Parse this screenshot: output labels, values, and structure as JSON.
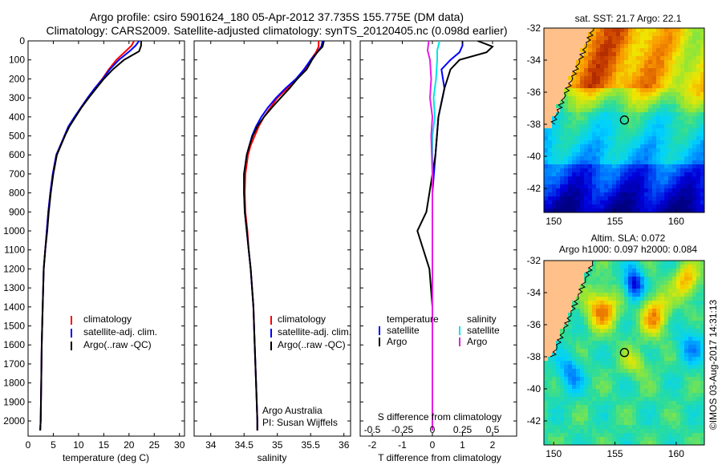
{
  "header": {
    "line1": "Argo profile: csiro 5901624_180 05-Apr-2012 37.735S 155.775E (DM data)",
    "line2": "Climatology: CARS2009. Satellite-adjusted climatology: synTS_20120405.nc (0.098d earlier)"
  },
  "colors": {
    "climatology": "#ff0000",
    "satellite": "#0000ff",
    "argo": "#000000",
    "satellite_s": "#00e5e5",
    "argo_s": "#e51ee5",
    "land": "#ffc08a"
  },
  "chart_data": [
    {
      "type": "line",
      "name": "temperature",
      "xlabel": "temperature (deg C)",
      "ylabel": "",
      "xlim": [
        0,
        31
      ],
      "ylim": [
        2080,
        0
      ],
      "xticks": [
        0,
        5,
        10,
        15,
        20,
        25,
        30
      ],
      "yticks": [
        0,
        100,
        200,
        300,
        400,
        500,
        600,
        700,
        800,
        900,
        1000,
        1100,
        1200,
        1300,
        1400,
        1500,
        1600,
        1700,
        1800,
        1900,
        2000
      ],
      "legend": [
        "climatology",
        "satellite-adj. clim.",
        "Argo(..raw -QC)"
      ],
      "series": [
        {
          "name": "climatology",
          "color": "#ff0000",
          "x": [
            21.0,
            20.5,
            19.5,
            17.5,
            16.0,
            14.7,
            13.2,
            11.8,
            10.5,
            9.3,
            8.0,
            7.2,
            6.4,
            5.6,
            4.9,
            4.4,
            4.0,
            3.7,
            3.4,
            3.1,
            2.9,
            2.7,
            2.6,
            2.5,
            2.4
          ],
          "y": [
            0,
            25,
            50,
            100,
            150,
            200,
            250,
            300,
            350,
            400,
            450,
            500,
            550,
            600,
            700,
            800,
            900,
            1000,
            1100,
            1200,
            1400,
            1600,
            1800,
            2000,
            2050
          ]
        },
        {
          "name": "satellite-adj. clim.",
          "color": "#0000ff",
          "x": [
            22.0,
            21.3,
            20.3,
            18.0,
            16.2,
            14.8,
            13.2,
            11.8,
            10.5,
            9.2,
            8.0,
            7.2,
            6.4,
            5.6,
            4.9,
            4.4,
            4.0,
            3.7,
            3.4,
            3.1,
            2.9,
            2.7,
            2.6,
            2.5,
            2.4
          ],
          "y": [
            0,
            25,
            50,
            100,
            150,
            200,
            250,
            300,
            350,
            400,
            450,
            500,
            550,
            600,
            700,
            800,
            900,
            1000,
            1100,
            1200,
            1400,
            1600,
            1800,
            2000,
            2050
          ]
        },
        {
          "name": "Argo(..raw -QC)",
          "color": "#000000",
          "x": [
            22.4,
            22.4,
            22.0,
            19.0,
            16.8,
            15.0,
            13.5,
            12.0,
            10.6,
            9.4,
            8.2,
            7.3,
            6.5,
            5.7,
            5.0,
            4.5,
            4.1,
            3.8,
            3.4,
            3.1,
            2.9,
            2.7,
            2.6,
            2.5,
            2.4
          ],
          "y": [
            0,
            25,
            55,
            100,
            150,
            200,
            250,
            300,
            350,
            400,
            450,
            500,
            550,
            600,
            700,
            800,
            900,
            1000,
            1100,
            1200,
            1400,
            1600,
            1800,
            2000,
            2050
          ]
        }
      ]
    },
    {
      "type": "line",
      "name": "salinity",
      "xlabel": "salinity",
      "ylabel": "",
      "xlim": [
        33.75,
        36.1
      ],
      "ylim": [
        2080,
        0
      ],
      "xticks": [
        34,
        34.5,
        35,
        35.5,
        36
      ],
      "yticks": [
        0,
        100,
        200,
        300,
        400,
        500,
        600,
        700,
        800,
        900,
        1000,
        1100,
        1200,
        1300,
        1400,
        1500,
        1600,
        1700,
        1800,
        1900,
        2000
      ],
      "legend": [
        "climatology",
        "satellite-adj. clim.",
        "Argo(..raw -QC)"
      ],
      "annotation": [
        "Argo Australia",
        "PI: Susan Wijffels"
      ],
      "series": [
        {
          "name": "climatology",
          "color": "#ff0000",
          "x": [
            35.62,
            35.62,
            35.58,
            35.5,
            35.42,
            35.3,
            35.15,
            35.0,
            34.9,
            34.8,
            34.72,
            34.66,
            34.6,
            34.56,
            34.52,
            34.51,
            34.52,
            34.55,
            34.57,
            34.6,
            34.64,
            34.66,
            34.68,
            34.7,
            34.7
          ],
          "y": [
            0,
            30,
            60,
            100,
            150,
            200,
            250,
            300,
            350,
            400,
            450,
            500,
            550,
            600,
            700,
            800,
            900,
            1000,
            1100,
            1200,
            1400,
            1600,
            1800,
            2000,
            2050
          ]
        },
        {
          "name": "satellite-adj. clim.",
          "color": "#0000ff",
          "x": [
            35.68,
            35.66,
            35.6,
            35.5,
            35.4,
            35.28,
            35.12,
            34.98,
            34.86,
            34.76,
            34.68,
            34.62,
            34.58,
            34.54,
            34.5,
            34.5,
            34.51,
            34.54,
            34.57,
            34.6,
            34.64,
            34.66,
            34.68,
            34.7,
            34.7
          ],
          "y": [
            0,
            30,
            60,
            100,
            150,
            200,
            250,
            300,
            350,
            400,
            450,
            500,
            550,
            600,
            700,
            800,
            900,
            1000,
            1100,
            1200,
            1400,
            1600,
            1800,
            2000,
            2050
          ]
        },
        {
          "name": "Argo(..raw -QC)",
          "color": "#000000",
          "x": [
            35.7,
            35.68,
            35.6,
            35.52,
            35.44,
            35.3,
            35.18,
            35.05,
            34.92,
            34.8,
            34.7,
            34.63,
            34.58,
            34.54,
            34.5,
            34.5,
            34.51,
            34.54,
            34.57,
            34.6,
            34.64,
            34.66,
            34.68,
            34.7,
            34.7
          ],
          "y": [
            0,
            30,
            60,
            100,
            150,
            200,
            250,
            300,
            350,
            400,
            450,
            500,
            550,
            600,
            700,
            800,
            900,
            1000,
            1100,
            1200,
            1400,
            1600,
            1800,
            2000,
            2050
          ]
        }
      ]
    },
    {
      "type": "line",
      "name": "difference",
      "xlabel": "T difference from climatology",
      "x2label": "S difference from climatology",
      "xlim": [
        -2.4,
        2.8
      ],
      "x2lim": [
        -0.6,
        0.7
      ],
      "ylim": [
        2080,
        0
      ],
      "xticks": [
        -2,
        -1,
        0,
        1,
        2
      ],
      "x2ticks": [
        -0.5,
        -0.25,
        0,
        0.25,
        0.5
      ],
      "x2ticklabels": [
        "-0.5",
        "-0.25",
        "0",
        "0.25",
        "0.5"
      ],
      "yticks": [
        0,
        100,
        200,
        300,
        400,
        500,
        600,
        700,
        800,
        900,
        1000,
        1100,
        1200,
        1300,
        1400,
        1500,
        1600,
        1700,
        1800,
        1900,
        2000
      ],
      "legend": {
        "temperature": [
          "satellite",
          "Argo"
        ],
        "salinity": [
          "satellite",
          "Argo"
        ]
      },
      "series": [
        {
          "name": "temperature satellite",
          "color": "#0000ff",
          "axis": "T",
          "x": [
            1.0,
            1.0,
            0.9,
            0.6,
            0.3,
            0.4,
            0.2,
            0.1,
            0.0,
            0.0,
            0.0,
            0.0,
            0.0,
            0.0,
            0.0,
            0.0
          ],
          "y": [
            0,
            25,
            60,
            100,
            150,
            250,
            400,
            600,
            800,
            1000,
            1100,
            1200,
            1400,
            1600,
            1800,
            2050
          ]
        },
        {
          "name": "temperature Argo",
          "color": "#000000",
          "axis": "T",
          "x": [
            1.5,
            2.0,
            1.8,
            0.9,
            0.6,
            0.4,
            0.2,
            0.1,
            -0.1,
            -0.2,
            -0.5,
            -0.1,
            0.0,
            0.0,
            0.0,
            0.0
          ],
          "y": [
            0,
            30,
            60,
            100,
            150,
            250,
            400,
            600,
            800,
            900,
            1000,
            1200,
            1400,
            1600,
            1800,
            2050
          ]
        },
        {
          "name": "salinity satellite",
          "color": "#00e5e5",
          "axis": "S",
          "x": [
            0.06,
            0.04,
            0.04,
            0.03,
            0.01,
            0.02,
            0.0,
            0.0,
            0.0,
            0.0,
            0.0,
            0.0,
            0.0
          ],
          "y": [
            0,
            50,
            100,
            200,
            300,
            400,
            500,
            700,
            1000,
            1200,
            1500,
            1800,
            2050
          ]
        },
        {
          "name": "salinity Argo",
          "color": "#e51ee5",
          "axis": "S",
          "x": [
            -0.03,
            -0.04,
            -0.02,
            -0.01,
            -0.02,
            0.0,
            -0.01,
            0.0,
            0.0,
            0.0,
            0.0,
            0.0,
            0.0
          ],
          "y": [
            0,
            50,
            100,
            200,
            300,
            400,
            500,
            700,
            1000,
            1200,
            1500,
            1800,
            2050
          ]
        }
      ]
    },
    {
      "type": "heatmap",
      "name": "sst-map",
      "title": "sat. SST: 21.7  Argo: 22.1",
      "xlim": [
        149.2,
        162.3
      ],
      "ylim": [
        -43.5,
        -32
      ],
      "xticks": [
        150,
        155,
        160
      ],
      "yticks": [
        -32,
        -34,
        -36,
        -38,
        -40,
        -42
      ],
      "marker": {
        "lon": 155.775,
        "lat": -37.735
      }
    },
    {
      "type": "heatmap",
      "name": "sla-map",
      "title": [
        "Altim. SLA: 0.072",
        "Argo h1000: 0.097 h2000: 0.084"
      ],
      "xlim": [
        149.2,
        162.3
      ],
      "ylim": [
        -43.5,
        -32
      ],
      "xticks": [
        150,
        155,
        160
      ],
      "yticks": [
        -32,
        -34,
        -36,
        -38,
        -40,
        -42
      ],
      "marker": {
        "lon": 155.775,
        "lat": -37.735
      }
    }
  ],
  "footer": {
    "stamp": "©IMOS 03-Aug-2017 14:31:13"
  }
}
